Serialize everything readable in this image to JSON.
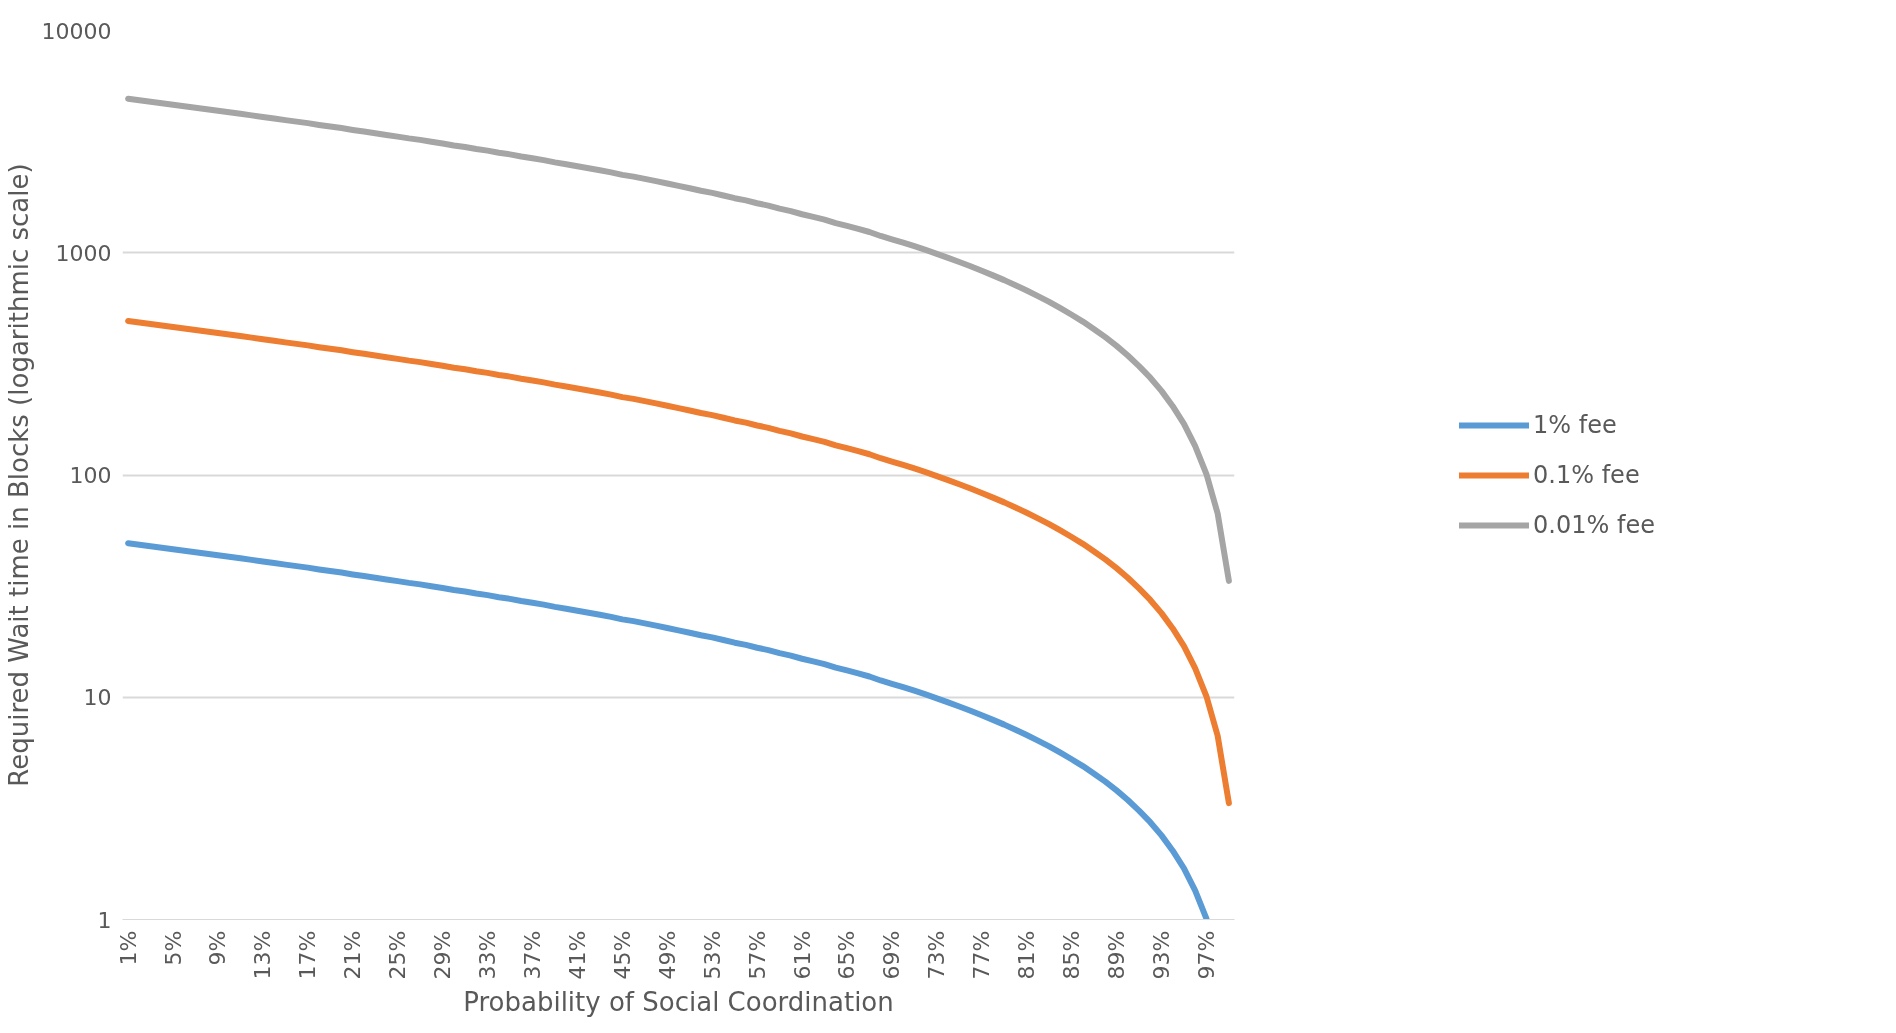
{
  "chart_data": {
    "type": "line",
    "xlabel": "Probability of Social Coordination",
    "ylabel": "Required Wait time in Blocks (logarithmic scale)",
    "categories": [
      "1%",
      null,
      null,
      null,
      "5%",
      null,
      null,
      null,
      "9%",
      null,
      null,
      null,
      "13%",
      null,
      null,
      null,
      "17%",
      null,
      null,
      null,
      "21%",
      null,
      null,
      null,
      "25%",
      null,
      null,
      null,
      "29%",
      null,
      null,
      null,
      "33%",
      null,
      null,
      null,
      "37%",
      null,
      null,
      null,
      "41%",
      null,
      null,
      null,
      "45%",
      null,
      null,
      null,
      "49%",
      null,
      null,
      null,
      "53%",
      null,
      null,
      null,
      "57%",
      null,
      null,
      null,
      "61%",
      null,
      null,
      null,
      "65%",
      null,
      null,
      null,
      "69%",
      null,
      null,
      null,
      "73%",
      null,
      null,
      null,
      "77%",
      null,
      null,
      null,
      "81%",
      null,
      null,
      null,
      "85%",
      null,
      null,
      null,
      "89%",
      null,
      null,
      null,
      "93%",
      null,
      null,
      null,
      "97%",
      null,
      null
    ],
    "series": [
      {
        "name": "1% fee",
        "color": "#5b9bd5",
        "values": [
          49.3,
          48.5,
          47.8,
          47.1,
          46.3,
          45.6,
          44.9,
          44.2,
          43.5,
          42.9,
          42.2,
          41.5,
          40.8,
          40.2,
          39.5,
          38.9,
          38.3,
          37.6,
          37,
          36.4,
          35.7,
          35.1,
          34.5,
          33.9,
          33.3,
          32.7,
          32.2,
          31.6,
          31,
          30.4,
          29.9,
          29.3,
          28.8,
          28.2,
          27.7,
          27.1,
          26.6,
          26.1,
          25.5,
          25,
          24.5,
          24,
          23.5,
          23,
          22.4,
          22,
          21.5,
          21,
          20.5,
          20,
          19.5,
          19,
          18.6,
          18.1,
          17.6,
          17.2,
          16.7,
          16.3,
          15.8,
          15.4,
          14.9,
          14.5,
          14.1,
          13.6,
          13.2,
          12.8,
          12.4,
          11.9,
          11.5,
          11.1,
          10.7,
          10.3,
          9.89,
          9.49,
          9.09,
          8.7,
          8.3,
          7.91,
          7.53,
          7.14,
          6.76,
          6.38,
          6.01,
          5.63,
          5.26,
          4.9,
          4.53,
          4.17,
          3.81,
          3.45,
          3.09,
          2.74,
          2.39,
          2.04,
          1.7,
          1.35,
          1.01,
          null,
          null
        ]
      },
      {
        "name": "0.1% fee",
        "color": "#ed7d31",
        "values": [
          493,
          485,
          478,
          471,
          463,
          456,
          449,
          442,
          435,
          429,
          422,
          415,
          408,
          402,
          395,
          389,
          383,
          376,
          370,
          364,
          357,
          351,
          345,
          339,
          333,
          327,
          322,
          316,
          310,
          304,
          299,
          293,
          288,
          282,
          277,
          271,
          266,
          261,
          255,
          250,
          245,
          240,
          235,
          230,
          224,
          220,
          215,
          210,
          205,
          200,
          195,
          190,
          186,
          181,
          176,
          172,
          167,
          163,
          158,
          154,
          149,
          145,
          141,
          136,
          132,
          128,
          124,
          119,
          115,
          111,
          107,
          103,
          98.9,
          94.9,
          90.9,
          87,
          83,
          79.1,
          75.3,
          71.4,
          67.6,
          63.8,
          60.1,
          56.3,
          52.6,
          49,
          45.3,
          41.7,
          38.1,
          34.5,
          30.9,
          27.4,
          23.9,
          20.4,
          17,
          13.5,
          10.1,
          6.71,
          3.34
        ]
      },
      {
        "name": "0.01% fee",
        "color": "#a5a5a5",
        "values": [
          4930,
          4850,
          4780,
          4710,
          4630,
          4560,
          4490,
          4420,
          4350,
          4290,
          4220,
          4150,
          4080,
          4020,
          3950,
          3890,
          3830,
          3760,
          3700,
          3640,
          3570,
          3510,
          3450,
          3390,
          3330,
          3270,
          3220,
          3160,
          3100,
          3040,
          2990,
          2930,
          2880,
          2820,
          2770,
          2710,
          2660,
          2610,
          2550,
          2500,
          2450,
          2400,
          2350,
          2300,
          2240,
          2200,
          2150,
          2100,
          2050,
          2000,
          1950,
          1900,
          1860,
          1810,
          1760,
          1720,
          1670,
          1630,
          1580,
          1540,
          1490,
          1450,
          1410,
          1360,
          1320,
          1280,
          1240,
          1190,
          1150,
          1110,
          1070,
          1030,
          989,
          949,
          909,
          870,
          830,
          791,
          753,
          714,
          676,
          638,
          601,
          563,
          526,
          490,
          453,
          417,
          381,
          345,
          309,
          274,
          239,
          204,
          170,
          135,
          101,
          67.1,
          33.4
        ]
      }
    ],
    "log": "y",
    "ylim": [
      1,
      10000
    ],
    "yticks": [
      1,
      10,
      100,
      1000,
      10000
    ],
    "grid": "y",
    "legend": "right",
    "marker": "none",
    "line_style": "solid"
  }
}
